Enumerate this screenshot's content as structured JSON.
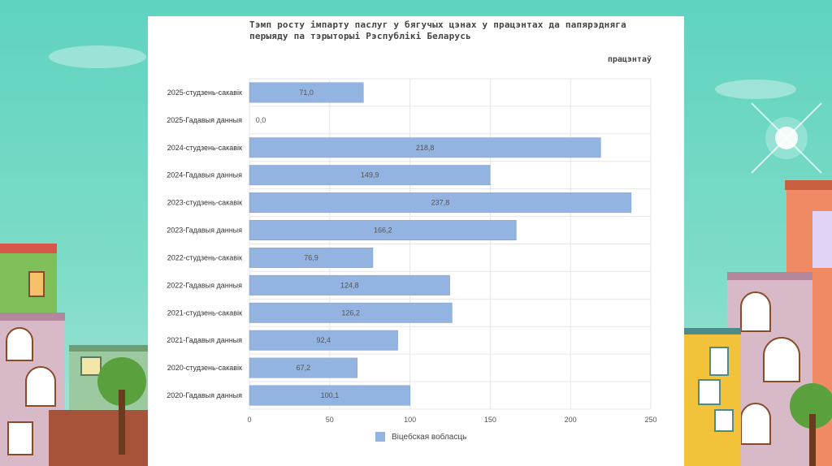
{
  "colors": {
    "bar": "#93b3e0",
    "bar_stroke": "#7c9ed0",
    "grid": "#e6e6e6"
  },
  "chart_data": {
    "type": "bar",
    "orientation": "horizontal",
    "title": "Тэмп росту імпарту паслуг у бягучых цэнах у працэнтах да папярэдняга перыяду па тэрыторыі Рэспублікі Беларусь",
    "unit_label": "працэнтаў",
    "categories": [
      "2025-студзень-сакавік",
      "2025-Гадавыя данныя",
      "2024-студзень-сакавік",
      "2024-Гадавыя данныя",
      "2023-студзень-сакавік",
      "2023-Гадавыя данныя",
      "2022-студзень-сакавік",
      "2022-Гадавыя данныя",
      "2021-студзень-сакавік",
      "2021-Гадавыя данныя",
      "2020-студзень-сакавік",
      "2020-Гадавыя данныя"
    ],
    "series": [
      {
        "name": "Віцебская вобласць",
        "values": [
          71.0,
          0.0,
          218.8,
          149.9,
          237.8,
          166.2,
          76.9,
          124.8,
          126.2,
          92.4,
          67.2,
          100.1
        ],
        "labels": [
          "71,0",
          "0,0",
          "218,8",
          "149,9",
          "237,8",
          "166,2",
          "76,9",
          "124,8",
          "126,2",
          "92,4",
          "67,2",
          "100,1"
        ]
      }
    ],
    "xlim": [
      0,
      250
    ],
    "xticks": [
      "0",
      "50",
      "100",
      "150",
      "200",
      "250"
    ],
    "grid": true,
    "legend_position": "bottom-center"
  }
}
